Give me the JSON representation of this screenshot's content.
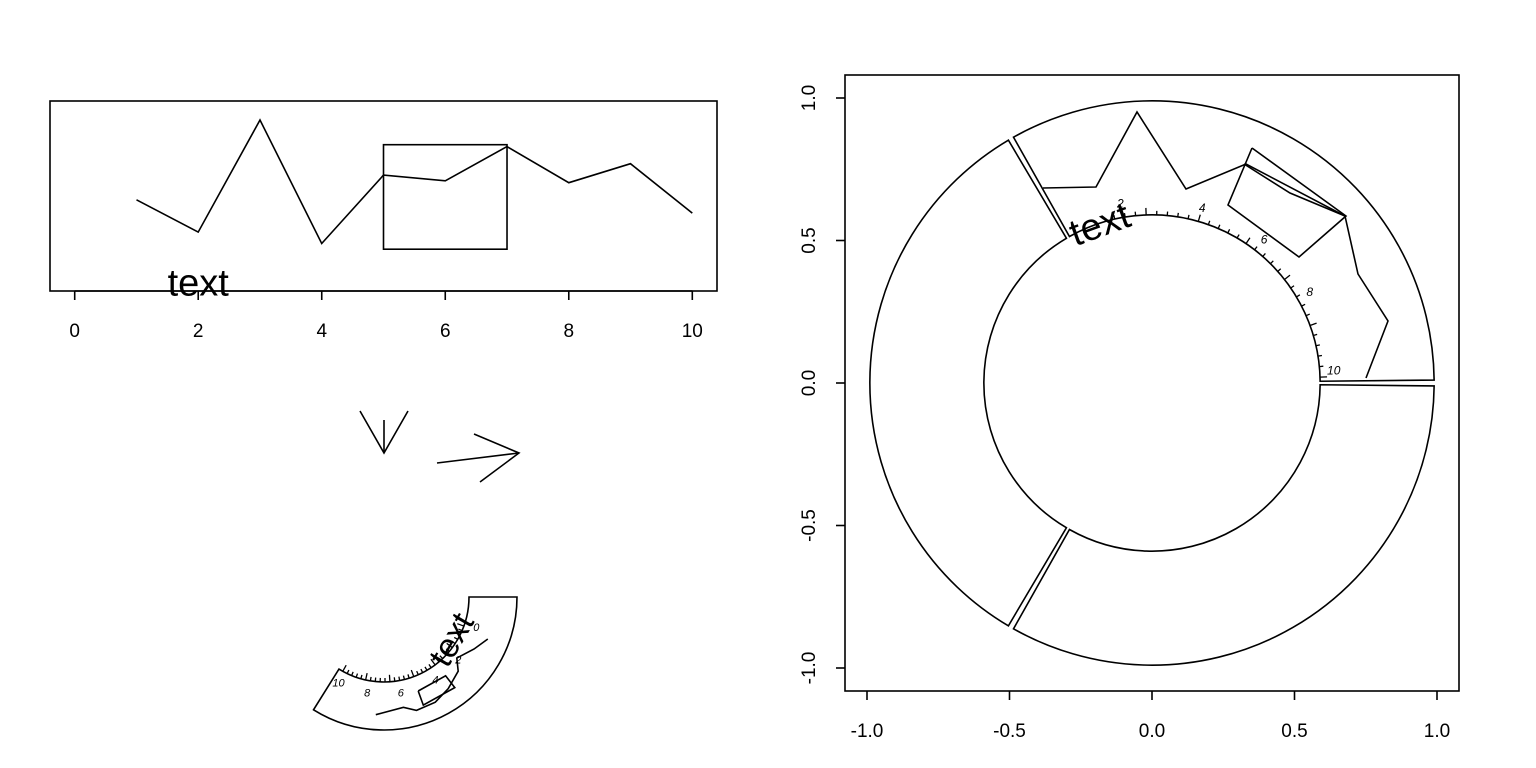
{
  "chart_data": [
    {
      "type": "line",
      "title": "",
      "xlabel": "",
      "ylabel": "",
      "xlim": [
        -0.4,
        10.4
      ],
      "ylim": [
        0,
        1
      ],
      "xticks": [
        0,
        2,
        4,
        6,
        8,
        10
      ],
      "x": [
        1,
        2,
        3,
        4,
        5,
        6,
        7,
        8,
        9,
        10
      ],
      "series": [
        {
          "values": [
            0.48,
            0.31,
            0.9,
            0.25,
            0.61,
            0.58,
            0.76,
            0.57,
            0.67,
            0.41
          ]
        }
      ],
      "highlight_rect": {
        "x": [
          5,
          7
        ],
        "y": [
          0.22,
          0.77
        ]
      },
      "annotation": {
        "text": "text",
        "x": 2,
        "y": 0.03
      }
    },
    {
      "type": "line",
      "title": "",
      "xlabel": "",
      "ylabel": "",
      "xlim": [
        -1.0,
        1.0
      ],
      "ylim": [
        -1.0,
        1.0
      ],
      "xticks": [
        "-1.0",
        "-0.5",
        "0.0",
        "0.5",
        "1.0"
      ],
      "yticks": [
        "-1.0",
        "-0.5",
        "0.0",
        "0.5",
        "1.0"
      ],
      "inner_radius": 0.59,
      "outer_radius": 0.99,
      "sectors": [
        {
          "from_deg": 0,
          "to_deg": 120
        },
        {
          "from_deg": 120,
          "to_deg": 240
        },
        {
          "from_deg": 240,
          "to_deg": 360
        }
      ],
      "track_axis": {
        "labels": [
          "2",
          "4",
          "6",
          "8",
          "10"
        ]
      },
      "track_text": "text"
    }
  ],
  "middle_glyphs": {
    "down_arrow_icon": "down-arrow",
    "right_arrow_icon": "right-arrow"
  },
  "small_fan": {
    "text": "text",
    "labels": [
      "10",
      "8",
      "6",
      "4",
      "2",
      "0"
    ]
  }
}
